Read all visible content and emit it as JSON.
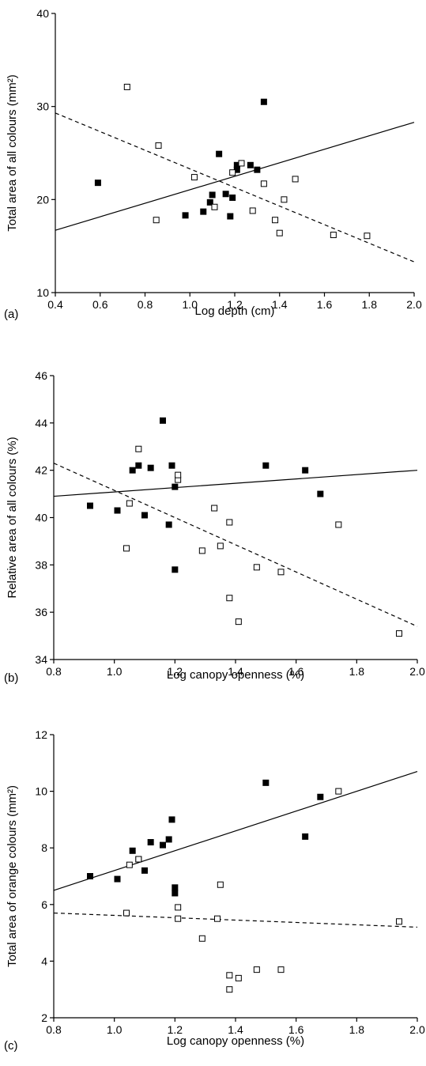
{
  "chart_data": [
    {
      "type": "scatter",
      "panel_label": "(a)",
      "xlabel": "Log depth (cm)",
      "ylabel": "Total area of all colours (mm²)",
      "xlim": [
        0.4,
        2.0
      ],
      "ylim": [
        10,
        40
      ],
      "xticks": [
        0.4,
        0.6,
        0.8,
        1.0,
        1.2,
        1.4,
        1.6,
        1.8,
        2.0
      ],
      "xtick_labels": [
        "0.4",
        "0.6",
        "0.8",
        "1.0",
        "1.2",
        "1.4",
        "1.6",
        "1.8",
        "2.0"
      ],
      "yticks": [
        10,
        20,
        30,
        40
      ],
      "ytick_labels": [
        "10",
        "20",
        "30",
        "40"
      ],
      "grid": false,
      "series": [
        {
          "marker": "filled-square",
          "points": [
            [
              0.59,
              21.8
            ],
            [
              0.98,
              18.3
            ],
            [
              1.06,
              18.7
            ],
            [
              1.09,
              19.7
            ],
            [
              1.1,
              20.5
            ],
            [
              1.13,
              24.9
            ],
            [
              1.16,
              20.6
            ],
            [
              1.18,
              18.2
            ],
            [
              1.19,
              20.2
            ],
            [
              1.21,
              23.2
            ],
            [
              1.21,
              23.7
            ],
            [
              1.27,
              23.7
            ],
            [
              1.3,
              23.2
            ],
            [
              1.33,
              30.5
            ]
          ],
          "trend": [
            [
              0.4,
              16.7
            ],
            [
              2.0,
              28.3
            ]
          ],
          "trend_style": "solid"
        },
        {
          "marker": "open-square",
          "points": [
            [
              0.72,
              32.1
            ],
            [
              0.85,
              17.8
            ],
            [
              0.86,
              25.8
            ],
            [
              1.02,
              22.4
            ],
            [
              1.11,
              19.2
            ],
            [
              1.19,
              22.9
            ],
            [
              1.23,
              23.9
            ],
            [
              1.28,
              18.8
            ],
            [
              1.33,
              21.7
            ],
            [
              1.38,
              17.8
            ],
            [
              1.4,
              16.4
            ],
            [
              1.42,
              20.0
            ],
            [
              1.47,
              22.2
            ],
            [
              1.64,
              16.2
            ],
            [
              1.79,
              16.1
            ]
          ],
          "trend": [
            [
              0.4,
              29.3
            ],
            [
              2.0,
              13.3
            ]
          ],
          "trend_style": "dashed"
        }
      ]
    },
    {
      "type": "scatter",
      "panel_label": "(b)",
      "xlabel": "Log canopy openness (%)",
      "ylabel": "Relative area of all colours (%)",
      "xlim": [
        0.8,
        2.0
      ],
      "ylim": [
        34,
        46
      ],
      "xticks": [
        0.8,
        1.0,
        1.2,
        1.4,
        1.6,
        1.8,
        2.0
      ],
      "xtick_labels": [
        "0.8",
        "1.0",
        "1.2",
        "1.4",
        "1.6",
        "1.8",
        "2.0"
      ],
      "yticks": [
        34,
        36,
        38,
        40,
        42,
        44,
        46
      ],
      "ytick_labels": [
        "34",
        "36",
        "38",
        "40",
        "42",
        "44",
        "46"
      ],
      "grid": false,
      "series": [
        {
          "marker": "filled-square",
          "points": [
            [
              0.92,
              40.5
            ],
            [
              1.01,
              40.3
            ],
            [
              1.06,
              42.0
            ],
            [
              1.08,
              42.2
            ],
            [
              1.1,
              40.1
            ],
            [
              1.12,
              42.1
            ],
            [
              1.16,
              44.1
            ],
            [
              1.18,
              39.7
            ],
            [
              1.19,
              42.2
            ],
            [
              1.2,
              41.3
            ],
            [
              1.2,
              37.8
            ],
            [
              1.5,
              42.2
            ],
            [
              1.63,
              42.0
            ],
            [
              1.68,
              41.0
            ]
          ],
          "trend": [
            [
              0.8,
              40.9
            ],
            [
              2.0,
              42.0
            ]
          ],
          "trend_style": "solid"
        },
        {
          "marker": "open-square",
          "points": [
            [
              1.04,
              38.7
            ],
            [
              1.05,
              40.6
            ],
            [
              1.08,
              42.9
            ],
            [
              1.21,
              41.6
            ],
            [
              1.21,
              41.8
            ],
            [
              1.29,
              38.6
            ],
            [
              1.33,
              40.4
            ],
            [
              1.35,
              38.8
            ],
            [
              1.38,
              39.8
            ],
            [
              1.38,
              36.6
            ],
            [
              1.41,
              35.6
            ],
            [
              1.47,
              37.9
            ],
            [
              1.55,
              37.7
            ],
            [
              1.74,
              39.7
            ],
            [
              1.94,
              35.1
            ]
          ],
          "trend": [
            [
              0.8,
              42.3
            ],
            [
              2.0,
              35.4
            ]
          ],
          "trend_style": "dashed"
        }
      ]
    },
    {
      "type": "scatter",
      "panel_label": "(c)",
      "xlabel": "Log canopy openness (%)",
      "ylabel": "Total area of orange colours (mm²)",
      "xlim": [
        0.8,
        2.0
      ],
      "ylim": [
        2,
        12
      ],
      "xticks": [
        0.8,
        1.0,
        1.2,
        1.4,
        1.6,
        1.8,
        2.0
      ],
      "xtick_labels": [
        "0.8",
        "1.0",
        "1.2",
        "1.4",
        "1.6",
        "1.8",
        "2.0"
      ],
      "yticks": [
        2,
        4,
        6,
        8,
        10,
        12
      ],
      "ytick_labels": [
        "2",
        "4",
        "6",
        "8",
        "10",
        "12"
      ],
      "grid": false,
      "series": [
        {
          "marker": "filled-square",
          "points": [
            [
              0.92,
              7.0
            ],
            [
              1.01,
              6.9
            ],
            [
              1.06,
              7.9
            ],
            [
              1.08,
              7.6
            ],
            [
              1.1,
              7.2
            ],
            [
              1.12,
              8.2
            ],
            [
              1.16,
              8.1
            ],
            [
              1.18,
              8.3
            ],
            [
              1.19,
              9.0
            ],
            [
              1.2,
              6.6
            ],
            [
              1.2,
              6.4
            ],
            [
              1.5,
              10.3
            ],
            [
              1.63,
              8.4
            ],
            [
              1.68,
              9.8
            ]
          ],
          "trend": [
            [
              0.8,
              6.5
            ],
            [
              2.0,
              10.7
            ]
          ],
          "trend_style": "solid"
        },
        {
          "marker": "open-square",
          "points": [
            [
              1.04,
              5.7
            ],
            [
              1.05,
              7.4
            ],
            [
              1.08,
              7.6
            ],
            [
              1.21,
              5.9
            ],
            [
              1.21,
              5.5
            ],
            [
              1.29,
              4.8
            ],
            [
              1.34,
              5.5
            ],
            [
              1.35,
              6.7
            ],
            [
              1.38,
              3.5
            ],
            [
              1.38,
              3.0
            ],
            [
              1.41,
              3.4
            ],
            [
              1.47,
              3.7
            ],
            [
              1.55,
              3.7
            ],
            [
              1.74,
              10.0
            ],
            [
              1.94,
              5.4
            ]
          ],
          "trend": [
            [
              0.8,
              5.7
            ],
            [
              2.0,
              5.2
            ]
          ],
          "trend_style": "dashed"
        }
      ]
    }
  ]
}
